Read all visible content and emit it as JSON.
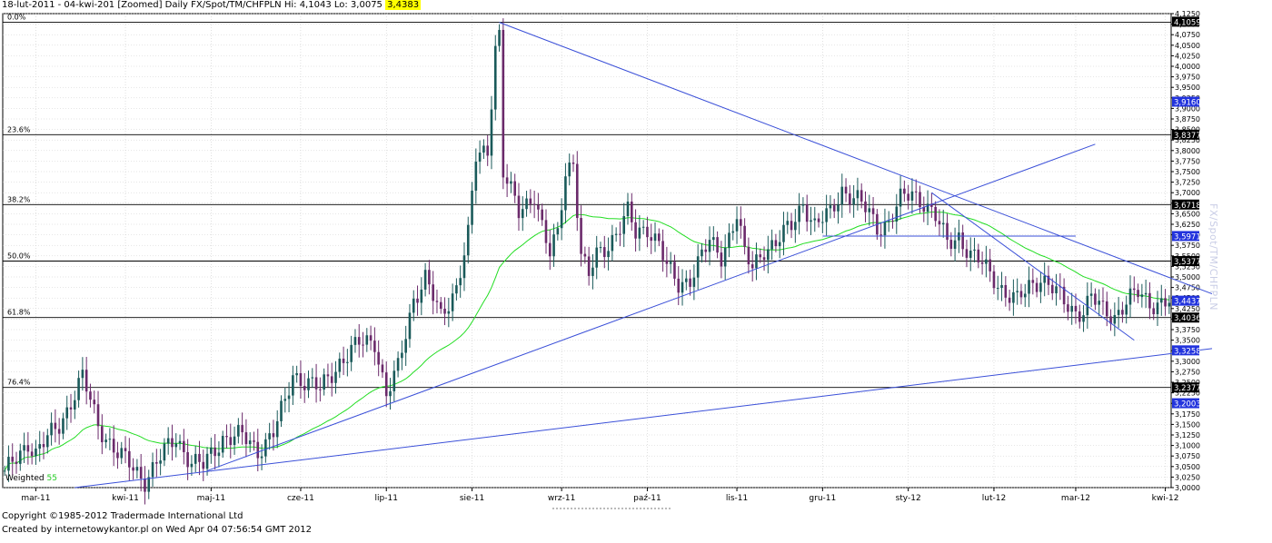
{
  "header": {
    "range": "18-lut-2011 - 04-kwi-201",
    "desc": "[Zoomed] Daily FX/Spot/TM/CHFPLN Hi: 4,1043 Lo: 3,0075",
    "last": "3,4383"
  },
  "footer": {
    "copyright": "Copyright ©1985-2012 Tradermade International Ltd",
    "created": "Created by internetowykantor.pl    on Wed Apr 04 07:56:54 GMT 2012"
  },
  "side_title": "FX/Spot/TM/CHFPLN",
  "indicator": {
    "label": "Weighted",
    "period": "55"
  },
  "colors": {
    "up_candle": "#1a5a5a",
    "down_candle": "#6b2a6b",
    "ma": "#22dd22",
    "trend": "#3a4fd8",
    "fib": "#000000",
    "grid": "#cccccc",
    "tag_black": "#000000",
    "tag_blue": "#2233dd",
    "highlight": "#ffff00"
  },
  "chart_data": {
    "type": "candlestick",
    "ylim": [
      3.0,
      4.125
    ],
    "y_ticks": [
      "3,0000",
      "3,0250",
      "3,0500",
      "3,0750",
      "3,1000",
      "3,1250",
      "3,1500",
      "3,1750",
      "3,2000",
      "3,2250",
      "3,2500",
      "3,2750",
      "3,3000",
      "3,3250",
      "3,3500",
      "3,3750",
      "3,4000",
      "3,4250",
      "3,4500",
      "3,4750",
      "3,5000",
      "3,5250",
      "3,5500",
      "3,5750",
      "3,6000",
      "3,6250",
      "3,6500",
      "3,6750",
      "3,7000",
      "3,7250",
      "3,7500",
      "3,7750",
      "3,8000",
      "3,8250",
      "3,8500",
      "3,8750",
      "3,9000",
      "3,9250",
      "3,9500",
      "3,9750",
      "4,0000",
      "4,0250",
      "4,0500",
      "4,0750",
      "4,1000",
      "4,1250"
    ],
    "x_labels": [
      {
        "label": "mar-11",
        "bar": 8
      },
      {
        "label": "kwi-11",
        "bar": 31
      },
      {
        "label": "maj-11",
        "bar": 53
      },
      {
        "label": "cze-11",
        "bar": 76
      },
      {
        "label": "lip-11",
        "bar": 98
      },
      {
        "label": "sie-11",
        "bar": 120
      },
      {
        "label": "wrz-11",
        "bar": 143
      },
      {
        "label": "paź-11",
        "bar": 165
      },
      {
        "label": "lis-11",
        "bar": 188
      },
      {
        "label": "gru-11",
        "bar": 210
      },
      {
        "label": "sty-12",
        "bar": 232
      },
      {
        "label": "lut-12",
        "bar": 254
      },
      {
        "label": "mar-12",
        "bar": 275
      },
      {
        "label": "kwi-12",
        "bar": 298
      }
    ],
    "fibonacci": [
      {
        "label": "0.0%",
        "value": 4.1043
      },
      {
        "label": "23.6%",
        "value": 3.8377
      },
      {
        "label": "38.2%",
        "value": 3.6718
      },
      {
        "label": "50.0%",
        "value": 3.5377
      },
      {
        "label": "61.8%",
        "value": 3.4036
      },
      {
        "label": "76.4%",
        "value": 3.2377
      }
    ],
    "price_tags": [
      {
        "value": 4.1059,
        "text": "4,1059",
        "style": "black"
      },
      {
        "value": 3.916,
        "text": "3,9160",
        "style": "blue"
      },
      {
        "value": 3.8377,
        "text": "3,8377",
        "style": "black"
      },
      {
        "value": 3.6718,
        "text": "3,6718",
        "style": "black"
      },
      {
        "value": 3.5971,
        "text": "3,5971",
        "style": "blue"
      },
      {
        "value": 3.5377,
        "text": "3,5377",
        "style": "black"
      },
      {
        "value": 3.4437,
        "text": "3,4437",
        "style": "blue"
      },
      {
        "value": 3.4036,
        "text": "3,4036",
        "style": "black"
      },
      {
        "value": 3.3258,
        "text": "3,3258",
        "style": "blue"
      },
      {
        "value": 3.2377,
        "text": "3,2377",
        "style": "black"
      },
      {
        "value": 3.2003,
        "text": "3,2003",
        "style": "blue"
      }
    ],
    "trendlines": [
      {
        "x1": 127,
        "y1": 4.1043,
        "x2": 310,
        "y2": 3.46
      },
      {
        "x1": 18,
        "y1": 3.0,
        "x2": 310,
        "y2": 3.33
      },
      {
        "x1": 52,
        "y1": 3.04,
        "x2": 280,
        "y2": 3.815
      },
      {
        "x1": 238,
        "y1": 3.7,
        "x2": 290,
        "y2": 3.35
      },
      {
        "x1": 210,
        "y1": 3.597,
        "x2": 275,
        "y2": 3.597
      }
    ],
    "anchors": [
      [
        0,
        3.03
      ],
      [
        6,
        3.11
      ],
      [
        8,
        3.08
      ],
      [
        14,
        3.15
      ],
      [
        20,
        3.26
      ],
      [
        24,
        3.15
      ],
      [
        29,
        3.08
      ],
      [
        36,
        3.02
      ],
      [
        40,
        3.07
      ],
      [
        44,
        3.12
      ],
      [
        48,
        3.06
      ],
      [
        51,
        3.05
      ],
      [
        56,
        3.12
      ],
      [
        61,
        3.12
      ],
      [
        65,
        3.09
      ],
      [
        69,
        3.13
      ],
      [
        72,
        3.2
      ],
      [
        74,
        3.27
      ],
      [
        78,
        3.25
      ],
      [
        81,
        3.23
      ],
      [
        86,
        3.3
      ],
      [
        91,
        3.34
      ],
      [
        95,
        3.35
      ],
      [
        98,
        3.22
      ],
      [
        101,
        3.28
      ],
      [
        105,
        3.45
      ],
      [
        108,
        3.5
      ],
      [
        112,
        3.4
      ],
      [
        116,
        3.48
      ],
      [
        119,
        3.6
      ],
      [
        121,
        3.78
      ],
      [
        124,
        3.8
      ],
      [
        126,
        4.05
      ],
      [
        127,
        4.08
      ],
      [
        128,
        3.75
      ],
      [
        132,
        3.65
      ],
      [
        136,
        3.7
      ],
      [
        138,
        3.62
      ],
      [
        140,
        3.55
      ],
      [
        142,
        3.6
      ],
      [
        144,
        3.75
      ],
      [
        146,
        3.78
      ],
      [
        148,
        3.55
      ],
      [
        150,
        3.5
      ],
      [
        152,
        3.55
      ],
      [
        155,
        3.58
      ],
      [
        158,
        3.62
      ],
      [
        160,
        3.65
      ],
      [
        162,
        3.6
      ],
      [
        165,
        3.62
      ],
      [
        168,
        3.58
      ],
      [
        170,
        3.52
      ],
      [
        173,
        3.48
      ],
      [
        176,
        3.5
      ],
      [
        179,
        3.55
      ],
      [
        181,
        3.58
      ],
      [
        184,
        3.55
      ],
      [
        186,
        3.6
      ],
      [
        188,
        3.65
      ],
      [
        190,
        3.55
      ],
      [
        192,
        3.52
      ],
      [
        195,
        3.57
      ],
      [
        198,
        3.58
      ],
      [
        202,
        3.62
      ],
      [
        205,
        3.68
      ],
      [
        208,
        3.62
      ],
      [
        212,
        3.65
      ],
      [
        215,
        3.71
      ],
      [
        219,
        3.68
      ],
      [
        222,
        3.65
      ],
      [
        224,
        3.62
      ],
      [
        227,
        3.63
      ],
      [
        230,
        3.68
      ],
      [
        233,
        3.7
      ],
      [
        236,
        3.68
      ],
      [
        239,
        3.64
      ],
      [
        242,
        3.58
      ],
      [
        245,
        3.6
      ],
      [
        248,
        3.55
      ],
      [
        251,
        3.53
      ],
      [
        254,
        3.5
      ],
      [
        257,
        3.46
      ],
      [
        260,
        3.44
      ],
      [
        263,
        3.48
      ],
      [
        266,
        3.5
      ],
      [
        269,
        3.47
      ],
      [
        272,
        3.44
      ],
      [
        275,
        3.42
      ],
      [
        277,
        3.42
      ],
      [
        279,
        3.45
      ],
      [
        282,
        3.42
      ],
      [
        285,
        3.41
      ],
      [
        288,
        3.44
      ],
      [
        291,
        3.46
      ],
      [
        294,
        3.44
      ],
      [
        297,
        3.44
      ],
      [
        299,
        3.44
      ]
    ],
    "bar_count": 300
  }
}
